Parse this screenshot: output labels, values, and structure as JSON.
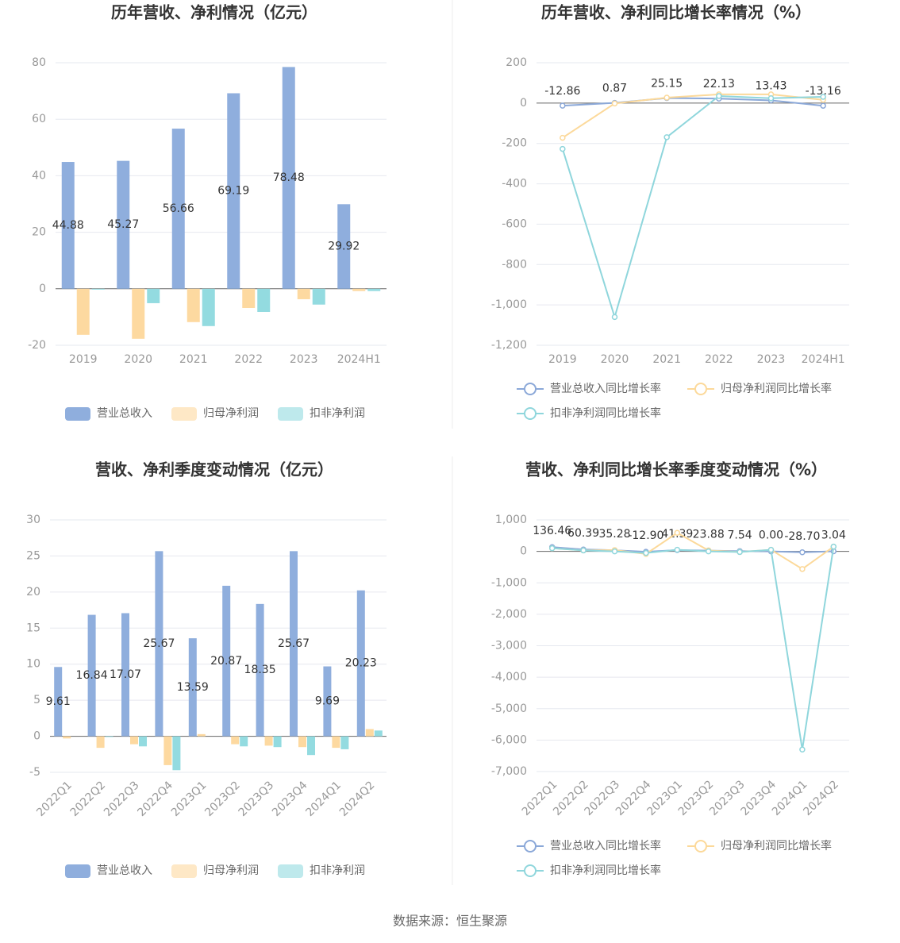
{
  "chart_data": [
    {
      "type": "bar",
      "title": "历年营收、净利情况（亿元）",
      "categories": [
        "2019",
        "2020",
        "2021",
        "2022",
        "2023",
        "2024H1"
      ],
      "series": [
        {
          "name": "营业总收入",
          "color": "#8faedd",
          "values": [
            44.88,
            45.27,
            56.66,
            69.19,
            78.48,
            29.92
          ],
          "labels": true
        },
        {
          "name": "归母净利润",
          "color": "#fdd9a0",
          "values": [
            -16.3,
            -17.7,
            -11.8,
            -6.8,
            -3.7,
            -0.8
          ]
        },
        {
          "name": "扣非净利润",
          "color": "#93dbe0",
          "values": [
            -0.3,
            -5.1,
            -13.2,
            -8.2,
            -5.6,
            -0.8
          ]
        }
      ],
      "ylim": [
        -20,
        80
      ],
      "yticks": [
        -20,
        0,
        20,
        40,
        60,
        80
      ],
      "grid": true,
      "legend": "bottom"
    },
    {
      "type": "line",
      "title": "历年营收、净利同比增长率情况（%）",
      "categories": [
        "2019",
        "2020",
        "2021",
        "2022",
        "2023",
        "2024H1"
      ],
      "series": [
        {
          "name": "营业总收入同比增长率",
          "color": "#8ba8d8",
          "values": [
            -12.86,
            0.87,
            25.15,
            22.13,
            13.43,
            -13.16
          ],
          "labels": true
        },
        {
          "name": "归母净利润同比增长率",
          "color": "#fcd99a",
          "values": [
            -172,
            -2,
            27,
            43,
            43,
            16
          ]
        },
        {
          "name": "扣非净利润同比增长率",
          "color": "#8fd6dc",
          "values": [
            -227,
            -1060,
            -169,
            35,
            24,
            31
          ]
        }
      ],
      "ylim": [
        -1200,
        200
      ],
      "yticks": [
        {
          "value": -1200,
          "label": "-1,200"
        },
        {
          "value": -1000,
          "label": "-1,000"
        },
        -800,
        -600,
        -400,
        -200,
        0,
        200
      ],
      "grid": true,
      "legend": "bottom"
    },
    {
      "type": "bar",
      "title": "营收、净利季度变动情况（亿元）",
      "categories": [
        "2022Q1",
        "2022Q2",
        "2022Q3",
        "2022Q4",
        "2023Q1",
        "2023Q2",
        "2023Q3",
        "2023Q4",
        "2024Q1",
        "2024Q2"
      ],
      "series": [
        {
          "name": "营业总收入",
          "color": "#8faedd",
          "values": [
            9.61,
            16.84,
            17.07,
            25.67,
            13.59,
            20.87,
            18.35,
            25.67,
            9.69,
            20.23
          ],
          "labels": true
        },
        {
          "name": "归母净利润",
          "color": "#fdd9a0",
          "values": [
            -0.3,
            -1.6,
            -1.1,
            -4.0,
            0.3,
            -1.1,
            -1.3,
            -1.5,
            -1.6,
            1.0
          ]
        },
        {
          "name": "扣非净利润",
          "color": "#93dbe0",
          "values": [
            0,
            -0.1,
            -1.4,
            -4.7,
            0,
            -1.4,
            -1.5,
            -2.6,
            -1.8,
            0.8
          ]
        }
      ],
      "ylim": [
        -5,
        30
      ],
      "yticks": [
        -5,
        0,
        5,
        10,
        15,
        20,
        25,
        30
      ],
      "grid": true,
      "legend": "bottom",
      "rotate_labels": true
    },
    {
      "type": "line",
      "title": "营收、净利同比增长率季度变动情况（%）",
      "categories": [
        "2022Q1",
        "2022Q2",
        "2022Q3",
        "2022Q4",
        "2023Q1",
        "2023Q2",
        "2023Q3",
        "2023Q4",
        "2024Q1",
        "2024Q2"
      ],
      "series": [
        {
          "name": "营业总收入同比增长率",
          "color": "#8ba8d8",
          "values": [
            136.46,
            60.39,
            35.28,
            -12.9,
            41.39,
            23.88,
            7.54,
            0,
            -28.7,
            3.04
          ],
          "value_labels": [
            "136.46",
            "60.39",
            "35.28",
            "-12.90",
            "41.39",
            "23.88",
            "7.54",
            "0.00",
            "-28.70",
            "3.04"
          ],
          "labels": true
        },
        {
          "name": "归母净利润同比增长率",
          "color": "#fcd99a",
          "values": [
            100,
            30,
            40,
            -80,
            590,
            30,
            -20,
            50,
            -560,
            150
          ]
        },
        {
          "name": "扣非净利润同比增长率",
          "color": "#8fd6dc",
          "values": [
            100,
            30,
            0,
            -50,
            50,
            0,
            -20,
            50,
            -6300,
            150
          ]
        }
      ],
      "ylim": [
        -7000,
        1000
      ],
      "yticks": [
        {
          "value": -7000,
          "label": "-7,000"
        },
        {
          "value": -6000,
          "label": "-6,000"
        },
        {
          "value": -5000,
          "label": "-5,000"
        },
        {
          "value": -4000,
          "label": "-4,000"
        },
        {
          "value": -3000,
          "label": "-3,000"
        },
        {
          "value": -2000,
          "label": "-2,000"
        },
        {
          "value": -1000,
          "label": "-1,000"
        },
        0,
        {
          "value": 1000,
          "label": "1,000"
        }
      ],
      "grid": true,
      "legend": "bottom",
      "rotate_labels": true
    }
  ],
  "source": "数据来源：恒生聚源"
}
